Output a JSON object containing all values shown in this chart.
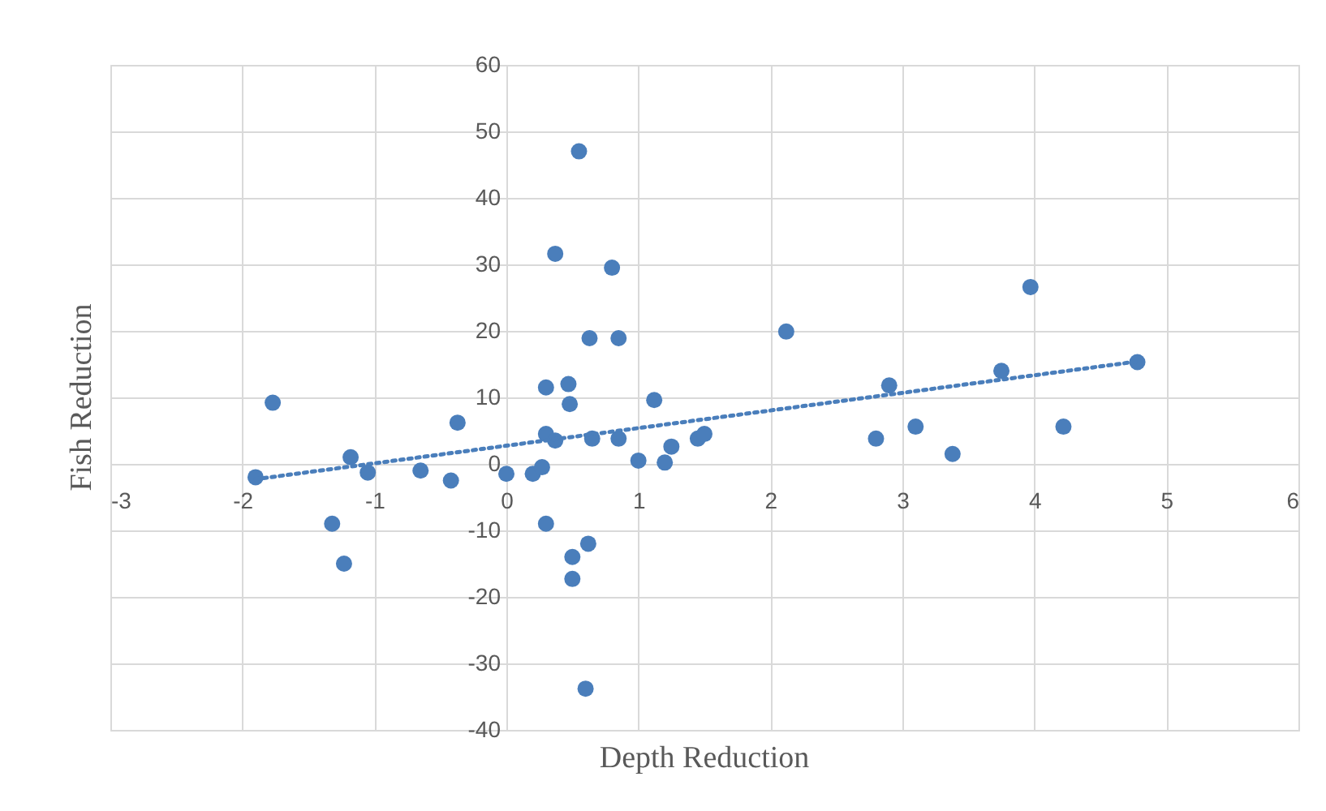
{
  "chart_data": {
    "type": "scatter",
    "xlabel": "Depth Reduction",
    "ylabel": "Fish Reduction",
    "xlim": [
      -3,
      6
    ],
    "xticks": [
      -3,
      -2,
      -1,
      0,
      1,
      2,
      3,
      4,
      5,
      6
    ],
    "ylim": [
      -40,
      60
    ],
    "yticks": [
      -40,
      -30,
      -20,
      -10,
      0,
      10,
      20,
      30,
      40,
      50,
      60
    ],
    "grid": true,
    "series": [
      {
        "color": "#4a7ebb",
        "marker": "circle",
        "x": [
          -1.9,
          -1.77,
          -1.32,
          -1.23,
          -1.18,
          -1.05,
          -0.65,
          -0.42,
          -0.37,
          0,
          0.2,
          0.27,
          0.3,
          0.3,
          0.3,
          0.37,
          0.37,
          0.47,
          0.48,
          0.5,
          0.5,
          0.55,
          0.6,
          0.62,
          0.63,
          0.65,
          0.8,
          0.85,
          0.85,
          1.0,
          1.12,
          1.2,
          1.25,
          1.45,
          1.5,
          2.12,
          2.8,
          2.9,
          3.1,
          3.38,
          3.75,
          3.97,
          4.22,
          4.78
        ],
        "values": [
          -2,
          9.2,
          -9,
          -15,
          1,
          -1.3,
          -1,
          -2.5,
          6.2,
          -1.5,
          -1.5,
          -0.5,
          -9,
          11.5,
          4.5,
          3.5,
          31.6,
          12,
          9,
          -14,
          -17.3,
          47,
          -33.8,
          -12,
          18.9,
          3.8,
          29.5,
          18.9,
          3.8,
          0.5,
          9.6,
          0.2,
          2.6,
          3.8,
          4.5,
          19.9,
          3.8,
          11.8,
          5.6,
          1.5,
          14,
          26.6,
          5.6,
          15.3
        ]
      },
      {
        "type": "line",
        "color": "#4a7ebb",
        "line_style": "dotted",
        "marker": "none",
        "x": [
          -1.9,
          4.78
        ],
        "values": [
          -2.3,
          15.4
        ]
      }
    ]
  }
}
